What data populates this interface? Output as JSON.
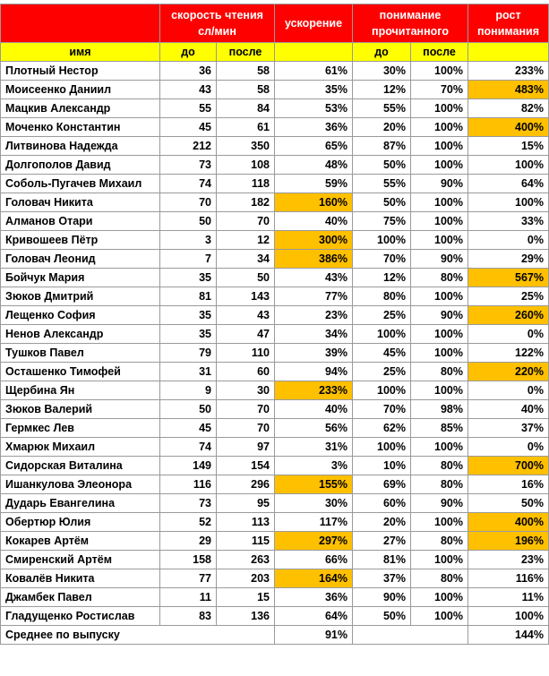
{
  "header": {
    "speed_group": "скорость чтения сл/мин",
    "acceleration": "ускорение",
    "comprehension_group": "понимание прочитанного",
    "comprehension_growth": "рост понимания"
  },
  "subheader": {
    "name": "имя",
    "speed_before": "до",
    "speed_after": "после",
    "accel": "",
    "comp_before": "до",
    "comp_after": "после",
    "growth": ""
  },
  "rows": [
    {
      "name": "Плотный Нестор",
      "before": "36",
      "after": "58",
      "accel": "61%",
      "comp_before": "30%",
      "comp_after": "100%",
      "growth": "233%",
      "accel_hl": false,
      "growth_hl": false
    },
    {
      "name": "Моисеенко Даниил",
      "before": "43",
      "after": "58",
      "accel": "35%",
      "comp_before": "12%",
      "comp_after": "70%",
      "growth": "483%",
      "accel_hl": false,
      "growth_hl": true
    },
    {
      "name": "Мацкив Александр",
      "before": "55",
      "after": "84",
      "accel": "53%",
      "comp_before": "55%",
      "comp_after": "100%",
      "growth": "82%",
      "accel_hl": false,
      "growth_hl": false
    },
    {
      "name": "Моченко Константин",
      "before": "45",
      "after": "61",
      "accel": "36%",
      "comp_before": "20%",
      "comp_after": "100%",
      "growth": "400%",
      "accel_hl": false,
      "growth_hl": true
    },
    {
      "name": "Литвинова Надежда",
      "before": "212",
      "after": "350",
      "accel": "65%",
      "comp_before": "87%",
      "comp_after": "100%",
      "growth": "15%",
      "accel_hl": false,
      "growth_hl": false
    },
    {
      "name": "Долгополов Давид",
      "before": "73",
      "after": "108",
      "accel": "48%",
      "comp_before": "50%",
      "comp_after": "100%",
      "growth": "100%",
      "accel_hl": false,
      "growth_hl": false
    },
    {
      "name": "Соболь-Пугачев Михаил",
      "before": "74",
      "after": "118",
      "accel": "59%",
      "comp_before": "55%",
      "comp_after": "90%",
      "growth": "64%",
      "accel_hl": false,
      "growth_hl": false
    },
    {
      "name": "Головач Никита",
      "before": "70",
      "after": "182",
      "accel": "160%",
      "comp_before": "50%",
      "comp_after": "100%",
      "growth": "100%",
      "accel_hl": true,
      "growth_hl": false
    },
    {
      "name": "Алманов Отари",
      "before": "50",
      "after": "70",
      "accel": "40%",
      "comp_before": "75%",
      "comp_after": "100%",
      "growth": "33%",
      "accel_hl": false,
      "growth_hl": false
    },
    {
      "name": "Кривошеев Пётр",
      "before": "3",
      "after": "12",
      "accel": "300%",
      "comp_before": "100%",
      "comp_after": "100%",
      "growth": "0%",
      "accel_hl": true,
      "growth_hl": false
    },
    {
      "name": "Головач Леонид",
      "before": "7",
      "after": "34",
      "accel": "386%",
      "comp_before": "70%",
      "comp_after": "90%",
      "growth": "29%",
      "accel_hl": true,
      "growth_hl": false
    },
    {
      "name": "Бойчук Мария",
      "before": "35",
      "after": "50",
      "accel": "43%",
      "comp_before": "12%",
      "comp_after": "80%",
      "growth": "567%",
      "accel_hl": false,
      "growth_hl": true
    },
    {
      "name": "Зюков Дмитрий",
      "before": "81",
      "after": "143",
      "accel": "77%",
      "comp_before": "80%",
      "comp_after": "100%",
      "growth": "25%",
      "accel_hl": false,
      "growth_hl": false
    },
    {
      "name": "Лещенко София",
      "before": "35",
      "after": "43",
      "accel": "23%",
      "comp_before": "25%",
      "comp_after": "90%",
      "growth": "260%",
      "accel_hl": false,
      "growth_hl": true
    },
    {
      "name": "Ненов Александр",
      "before": "35",
      "after": "47",
      "accel": "34%",
      "comp_before": "100%",
      "comp_after": "100%",
      "growth": "0%",
      "accel_hl": false,
      "growth_hl": false
    },
    {
      "name": "Тушков Павел",
      "before": "79",
      "after": "110",
      "accel": "39%",
      "comp_before": "45%",
      "comp_after": "100%",
      "growth": "122%",
      "accel_hl": false,
      "growth_hl": false
    },
    {
      "name": "Осташенко Тимофей",
      "before": "31",
      "after": "60",
      "accel": "94%",
      "comp_before": "25%",
      "comp_after": "80%",
      "growth": "220%",
      "accel_hl": false,
      "growth_hl": true
    },
    {
      "name": "Щербина Ян",
      "before": "9",
      "after": "30",
      "accel": "233%",
      "comp_before": "100%",
      "comp_after": "100%",
      "growth": "0%",
      "accel_hl": true,
      "growth_hl": false
    },
    {
      "name": "Зюков Валерий",
      "before": "50",
      "after": "70",
      "accel": "40%",
      "comp_before": "70%",
      "comp_after": "98%",
      "growth": "40%",
      "accel_hl": false,
      "growth_hl": false
    },
    {
      "name": "Гермкес Лев",
      "before": "45",
      "after": "70",
      "accel": "56%",
      "comp_before": "62%",
      "comp_after": "85%",
      "growth": "37%",
      "accel_hl": false,
      "growth_hl": false
    },
    {
      "name": "Хмарюк Михаил",
      "before": "74",
      "after": "97",
      "accel": "31%",
      "comp_before": "100%",
      "comp_after": "100%",
      "growth": "0%",
      "accel_hl": false,
      "growth_hl": false
    },
    {
      "name": "Сидорская Виталина",
      "before": "149",
      "after": "154",
      "accel": "3%",
      "comp_before": "10%",
      "comp_after": "80%",
      "growth": "700%",
      "accel_hl": false,
      "growth_hl": true
    },
    {
      "name": "Ишанкулова Элеонора",
      "before": "116",
      "after": "296",
      "accel": "155%",
      "comp_before": "69%",
      "comp_after": "80%",
      "growth": "16%",
      "accel_hl": true,
      "growth_hl": false
    },
    {
      "name": "Дударь Евангелина",
      "before": "73",
      "after": "95",
      "accel": "30%",
      "comp_before": "60%",
      "comp_after": "90%",
      "growth": "50%",
      "accel_hl": false,
      "growth_hl": false
    },
    {
      "name": "Обертюр Юлия",
      "before": "52",
      "after": "113",
      "accel": "117%",
      "comp_before": "20%",
      "comp_after": "100%",
      "growth": "400%",
      "accel_hl": false,
      "growth_hl": true
    },
    {
      "name": "Кокарев Артём",
      "before": "29",
      "after": "115",
      "accel": "297%",
      "comp_before": "27%",
      "comp_after": "80%",
      "growth": "196%",
      "accel_hl": true,
      "growth_hl": true
    },
    {
      "name": "Смиренский Артём",
      "before": "158",
      "after": "263",
      "accel": "66%",
      "comp_before": "81%",
      "comp_after": "100%",
      "growth": "23%",
      "accel_hl": false,
      "growth_hl": false
    },
    {
      "name": "Ковалёв Никита",
      "before": "77",
      "after": "203",
      "accel": "164%",
      "comp_before": "37%",
      "comp_after": "80%",
      "growth": "116%",
      "accel_hl": true,
      "growth_hl": false
    },
    {
      "name": "Джамбек Павел",
      "before": "11",
      "after": "15",
      "accel": "36%",
      "comp_before": "90%",
      "comp_after": "100%",
      "growth": "11%",
      "accel_hl": false,
      "growth_hl": false
    },
    {
      "name": "Гладущенко Ростислав",
      "before": "83",
      "after": "136",
      "accel": "64%",
      "comp_before": "50%",
      "comp_after": "100%",
      "growth": "100%",
      "accel_hl": false,
      "growth_hl": false
    }
  ],
  "average": {
    "label": "Среднее по выпуску",
    "accel": "91%",
    "growth": "144%"
  },
  "colors": {
    "header_bg": "#ff0000",
    "subheader_bg": "#ffff00",
    "highlight": "#ffc000"
  }
}
